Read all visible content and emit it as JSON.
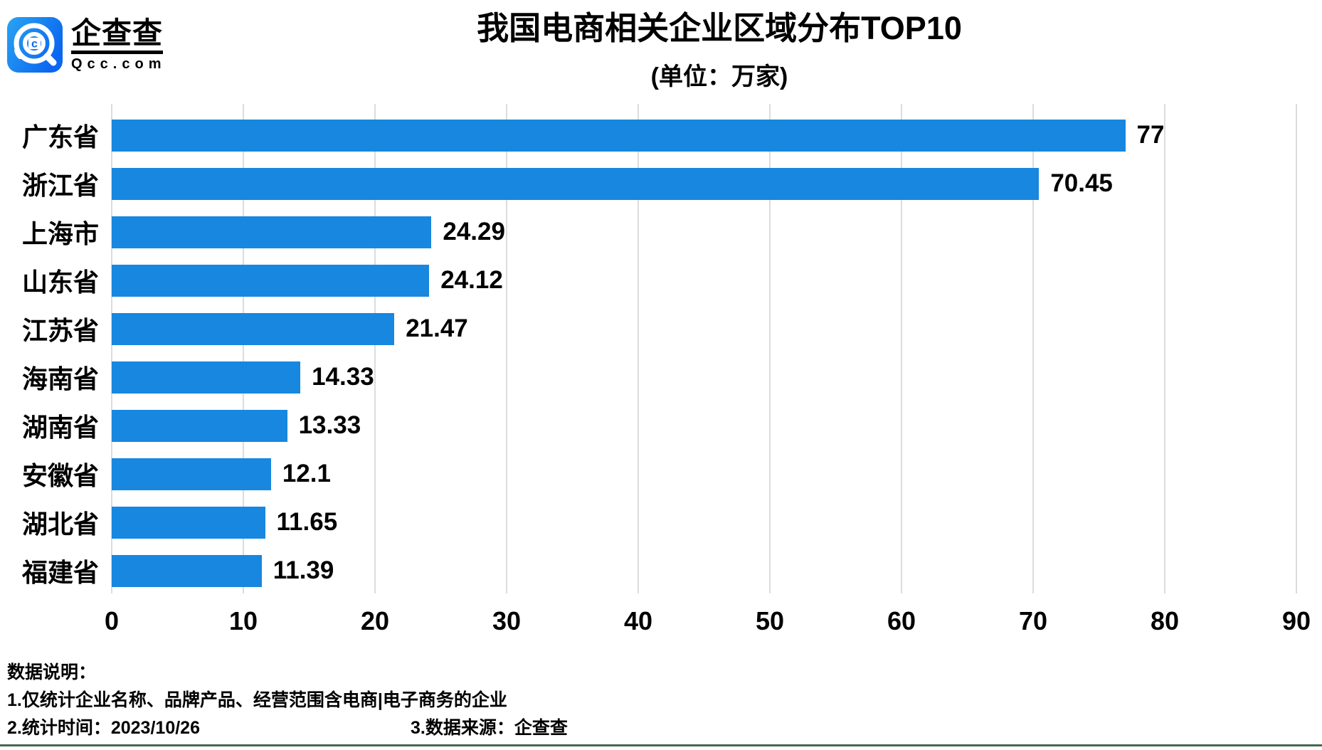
{
  "brand": {
    "name": "企查查",
    "domain": "Qcc.com",
    "icon": "qcc-logo-icon",
    "icon_colors": {
      "gradient_start": "#29a4f2",
      "gradient_end": "#0b66f0",
      "glyph": "#ffffff"
    }
  },
  "chart_data": {
    "type": "bar",
    "orientation": "horizontal",
    "title": "我国电商相关企业区域分布TOP10",
    "subtitle": "(单位：万家)",
    "categories": [
      "广东省",
      "浙江省",
      "上海市",
      "山东省",
      "江苏省",
      "海南省",
      "湖南省",
      "安徽省",
      "湖北省",
      "福建省"
    ],
    "values": [
      77,
      70.45,
      24.29,
      24.12,
      21.47,
      14.33,
      13.33,
      12.1,
      11.65,
      11.39
    ],
    "value_labels": [
      "77",
      "70.45",
      "24.29",
      "24.12",
      "21.47",
      "14.33",
      "13.33",
      "12.1",
      "11.65",
      "11.39"
    ],
    "xlabel": "",
    "ylabel": "",
    "xlim": [
      0,
      90
    ],
    "x_ticks": [
      0,
      10,
      20,
      30,
      40,
      50,
      60,
      70,
      80,
      90
    ],
    "grid": "vertical",
    "legend": "none",
    "bar_color": "#1787e0",
    "gridline_color": "#dcdcdc"
  },
  "footer": {
    "heading": "数据说明：",
    "note1": "1.仅统计企业名称、品牌产品、经营范围含电商|电子商务的企业",
    "note2": "2.统计时间：2023/10/26",
    "note3": "3.数据来源：企查查"
  }
}
